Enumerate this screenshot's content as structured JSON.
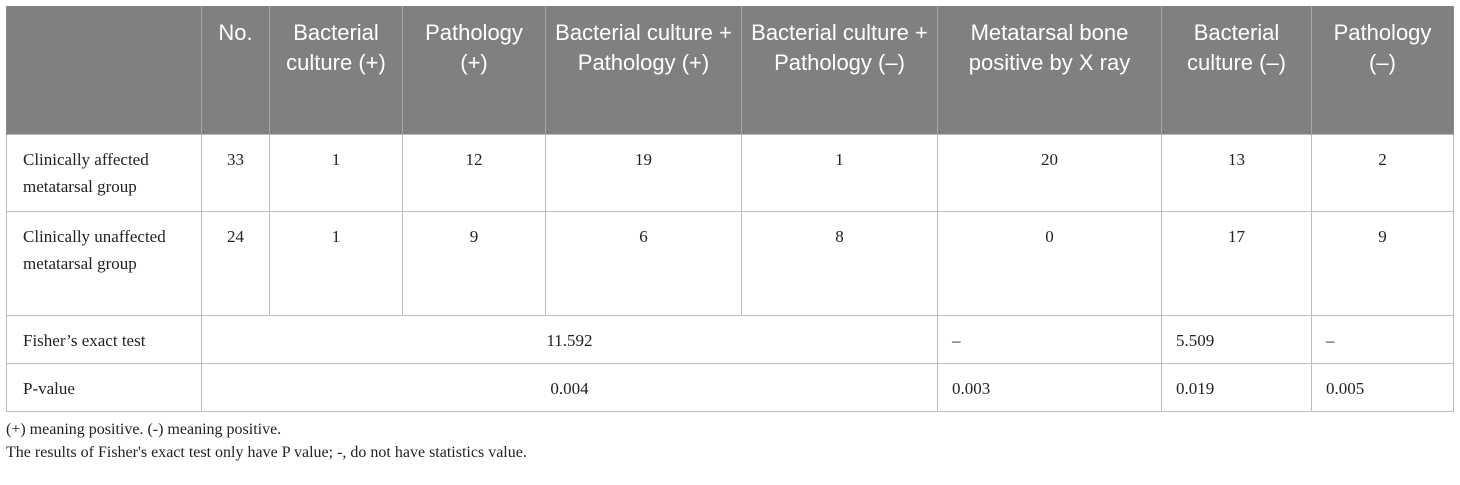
{
  "table": {
    "headers": [
      "",
      "No.",
      "Bacterial culture (+)",
      "Pathology (+)",
      "Bacterial culture + Pathology (+)",
      "Bacterial culture + Pathology (–)",
      "Metatarsal bone positive by X ray",
      "Bacterial culture (–)",
      "Pathology (–)"
    ],
    "rows": [
      {
        "label": "Clinically affected metatarsal group",
        "cells": [
          "33",
          "1",
          "12",
          "19",
          "1",
          "20",
          "13",
          "2"
        ]
      },
      {
        "label": "Clinically unaffected metatarsal group",
        "cells": [
          "24",
          "1",
          "9",
          "6",
          "8",
          "0",
          "17",
          "9"
        ]
      }
    ],
    "fisher": {
      "label": "Fisher’s exact test",
      "combined": "11.592",
      "xray": "–",
      "bacterial_negative": "5.509",
      "pathology_negative": "–"
    },
    "pvalue": {
      "label": "P-value",
      "combined": "0.004",
      "xray": "0.003",
      "bacterial_negative": "0.019",
      "pathology_negative": "0.005"
    }
  },
  "footnotes": [
    "(+) meaning positive. (-) meaning positive.",
    "The results of Fisher's exact test only have P value; -, do not have statistics value."
  ]
}
